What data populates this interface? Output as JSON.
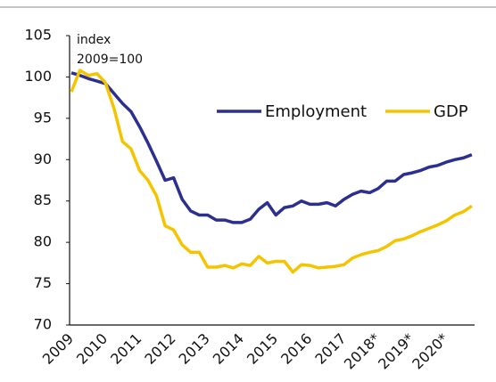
{
  "chart_data": {
    "type": "line",
    "annotation": [
      "index",
      "2009=100"
    ],
    "categories": [
      "2009",
      null,
      null,
      null,
      "2010",
      null,
      null,
      null,
      "2011",
      null,
      null,
      null,
      "2012",
      null,
      null,
      null,
      "2013",
      null,
      null,
      null,
      "2014",
      null,
      null,
      null,
      "2015",
      null,
      null,
      null,
      "2016",
      null,
      null,
      null,
      "2017",
      null,
      null,
      null,
      "2018*",
      null,
      null,
      null,
      "2019*",
      null,
      null,
      null,
      "2020*",
      null,
      null,
      null
    ],
    "series": [
      {
        "name": "Employment",
        "color": "#2b2f8f",
        "values": [
          100.5,
          100.2,
          99.8,
          99.5,
          99.2,
          98.0,
          96.8,
          95.8,
          94.0,
          92.0,
          89.8,
          87.5,
          87.8,
          85.2,
          83.8,
          83.3,
          83.3,
          82.7,
          82.7,
          82.4,
          82.4,
          82.8,
          84.0,
          84.8,
          83.3,
          84.2,
          84.4,
          85.0,
          84.6,
          84.6,
          84.8,
          84.4,
          85.2,
          85.8,
          86.2,
          86.0,
          86.5,
          87.4,
          87.4,
          88.2,
          88.4,
          88.7,
          89.1,
          89.3,
          89.7,
          90.0,
          90.2,
          90.6
        ]
      },
      {
        "name": "GDP",
        "color": "#f5c400",
        "values": [
          98.2,
          100.8,
          100.2,
          100.4,
          99.3,
          96.2,
          92.2,
          91.3,
          88.7,
          87.5,
          85.6,
          82.0,
          81.5,
          79.7,
          78.8,
          78.8,
          77.0,
          77.0,
          77.2,
          76.9,
          77.4,
          77.2,
          78.3,
          77.5,
          77.7,
          77.7,
          76.4,
          77.3,
          77.2,
          76.9,
          77.0,
          77.1,
          77.3,
          78.1,
          78.5,
          78.8,
          79.0,
          79.5,
          80.2,
          80.4,
          80.8,
          81.3,
          81.7,
          82.1,
          82.6,
          83.3,
          83.7,
          84.4
        ]
      }
    ],
    "ylim": [
      70,
      105
    ],
    "yticks": [
      70,
      75,
      80,
      85,
      90,
      95,
      100,
      105
    ],
    "grid": false
  }
}
